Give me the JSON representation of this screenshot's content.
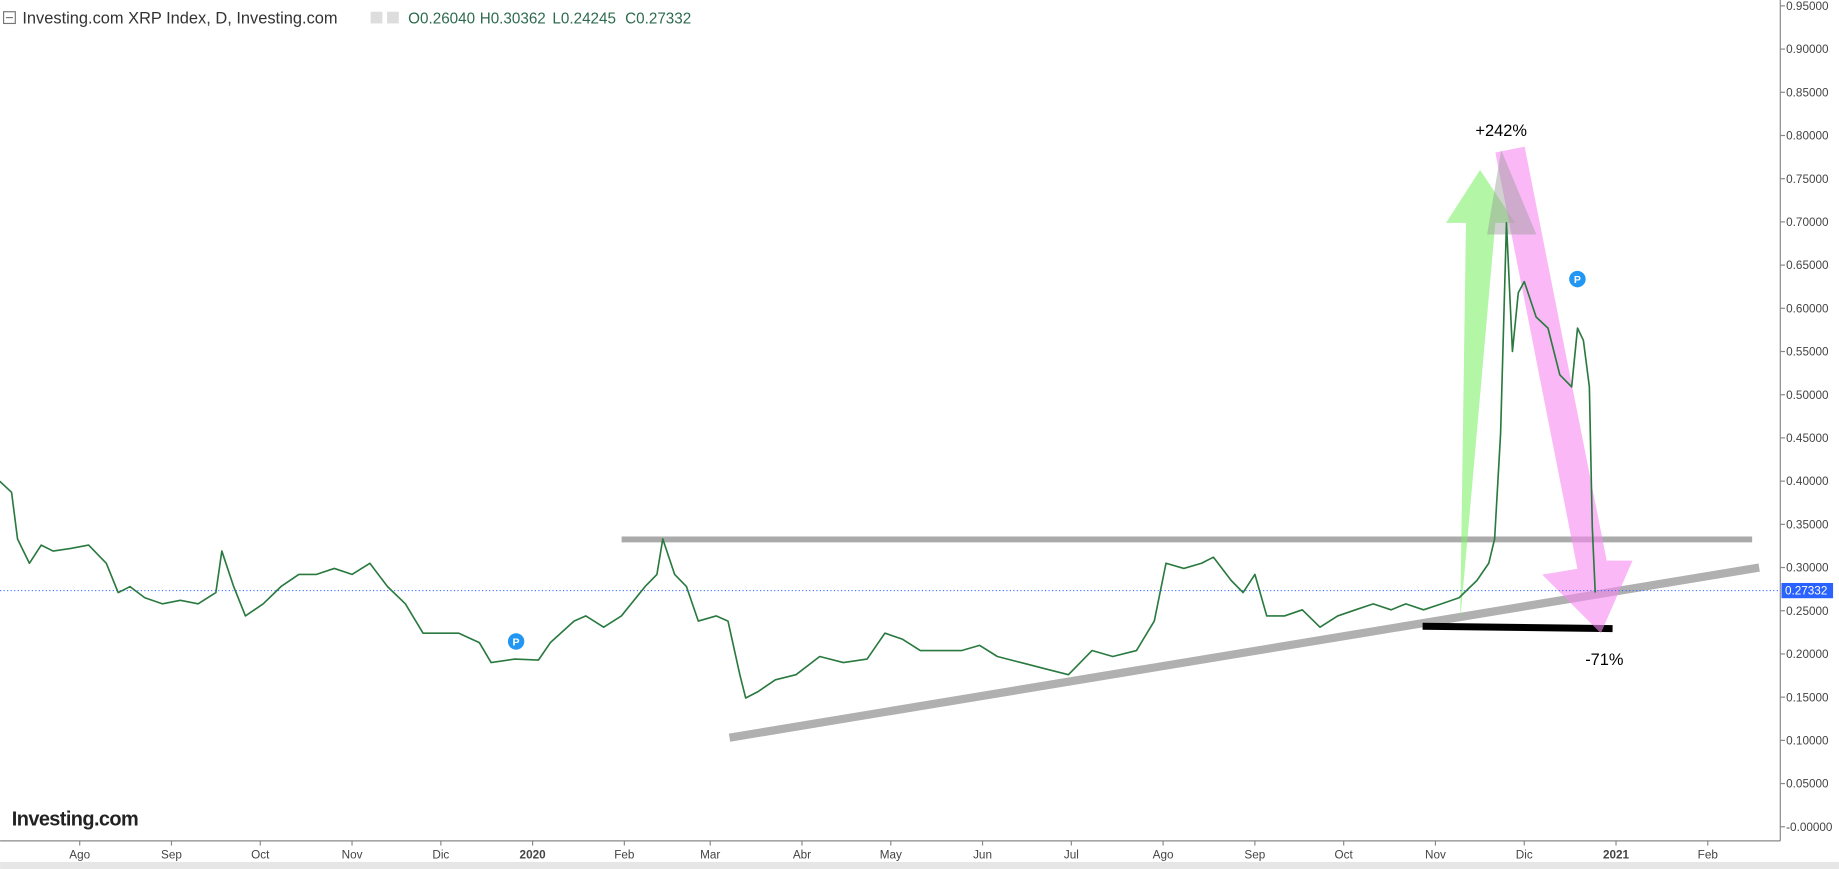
{
  "chart_data": {
    "type": "line",
    "title": "Investing.com XRP Index, D, Investing.com",
    "ohlc": [
      "O0.26040",
      "H0.30362",
      "L0.24245",
      "C0.27332"
    ],
    "annotations": [
      "+242%",
      "-71%"
    ],
    "logo": "Investing.com",
    "last_price": 0.27332,
    "xlim": [
      -26.9,
      574.5
    ],
    "xticks": [
      {
        "value": 0,
        "label": "Ago"
      },
      {
        "value": 31,
        "label": "Sep"
      },
      {
        "value": 61,
        "label": "Oct"
      },
      {
        "value": 92,
        "label": "Nov"
      },
      {
        "value": 122,
        "label": "Dic"
      },
      {
        "value": 153,
        "label": "2020"
      },
      {
        "value": 184,
        "label": "Feb"
      },
      {
        "value": 213,
        "label": "Mar"
      },
      {
        "value": 244,
        "label": "Abr"
      },
      {
        "value": 274,
        "label": "May"
      },
      {
        "value": 305,
        "label": "Jun"
      },
      {
        "value": 335,
        "label": "Jul"
      },
      {
        "value": 366,
        "label": "Ago"
      },
      {
        "value": 397,
        "label": "Sep"
      },
      {
        "value": 427,
        "label": "Oct"
      },
      {
        "value": 458,
        "label": "Nov"
      },
      {
        "value": 488,
        "label": "Dic"
      },
      {
        "value": 519,
        "label": "2021"
      },
      {
        "value": 550,
        "label": "Feb"
      }
    ],
    "ylim": [
      -0.0163,
      0.9568
    ],
    "yticks": [
      {
        "value": 0.95,
        "label": "0.95000"
      },
      {
        "value": 0.9,
        "label": "0.90000"
      },
      {
        "value": 0.85,
        "label": "0.85000"
      },
      {
        "value": 0.8,
        "label": "0.80000"
      },
      {
        "value": 0.75,
        "label": "0.75000"
      },
      {
        "value": 0.7,
        "label": "0.70000"
      },
      {
        "value": 0.65,
        "label": "0.65000"
      },
      {
        "value": 0.6,
        "label": "0.60000"
      },
      {
        "value": 0.55,
        "label": "0.55000"
      },
      {
        "value": 0.5,
        "label": "0.50000"
      },
      {
        "value": 0.45,
        "label": "0.45000"
      },
      {
        "value": 0.4,
        "label": "0.40000"
      },
      {
        "value": 0.35,
        "label": "0.35000"
      },
      {
        "value": 0.3,
        "label": "0.30000"
      },
      {
        "value": 0.25,
        "label": "0.25000"
      },
      {
        "value": 0.2,
        "label": "0.20000"
      },
      {
        "value": 0.15,
        "label": "0.15000"
      },
      {
        "value": 0.1,
        "label": "0.10000"
      },
      {
        "value": 0.05,
        "label": "0.05000"
      },
      {
        "value": 0,
        "label": "-0.00000"
      }
    ],
    "x": [
      -27,
      -23,
      -21,
      -17,
      -13,
      -9,
      -3,
      3,
      9,
      13,
      17,
      22,
      28,
      34,
      40,
      46,
      48,
      52,
      56,
      62,
      68,
      74,
      80,
      86,
      92,
      98,
      104,
      110,
      116,
      122,
      128,
      135,
      139,
      147,
      155,
      159,
      167,
      171,
      177,
      183,
      191,
      195,
      197,
      201,
      205,
      209,
      215,
      219,
      223,
      225,
      229,
      235,
      242,
      250,
      258,
      266,
      272,
      278,
      284,
      290,
      298,
      304,
      310,
      318,
      326,
      334,
      342,
      349,
      357,
      363,
      367,
      373,
      379,
      383,
      389,
      393,
      397,
      401,
      407,
      413,
      419,
      425,
      431,
      437,
      443,
      448,
      454,
      460,
      466,
      472,
      476,
      478,
      480,
      482,
      484,
      486,
      488,
      492,
      496,
      500,
      504,
      506,
      508,
      510,
      511,
      512
    ],
    "series": [
      {
        "color": "#2a7a40",
        "values": [
          0.4,
          0.387,
          0.333,
          0.305,
          0.326,
          0.319,
          0.322,
          0.326,
          0.305,
          0.271,
          0.278,
          0.265,
          0.258,
          0.262,
          0.258,
          0.271,
          0.319,
          0.278,
          0.244,
          0.258,
          0.278,
          0.292,
          0.292,
          0.299,
          0.292,
          0.305,
          0.278,
          0.258,
          0.224,
          0.224,
          0.224,
          0.213,
          0.19,
          0.194,
          0.193,
          0.213,
          0.238,
          0.244,
          0.231,
          0.244,
          0.278,
          0.292,
          0.333,
          0.292,
          0.278,
          0.238,
          0.244,
          0.238,
          0.176,
          0.149,
          0.156,
          0.17,
          0.176,
          0.197,
          0.19,
          0.194,
          0.224,
          0.217,
          0.204,
          0.204,
          0.204,
          0.21,
          0.197,
          0.19,
          0.183,
          0.176,
          0.204,
          0.197,
          0.204,
          0.238,
          0.305,
          0.299,
          0.305,
          0.312,
          0.285,
          0.271,
          0.292,
          0.244,
          0.244,
          0.251,
          0.231,
          0.244,
          0.251,
          0.258,
          0.251,
          0.258,
          0.251,
          0.258,
          0.265,
          0.285,
          0.305,
          0.333,
          0.455,
          0.699,
          0.55,
          0.618,
          0.631,
          0.59,
          0.577,
          0.523,
          0.509,
          0.577,
          0.563,
          0.509,
          0.346,
          0.271
        ]
      }
    ]
  }
}
